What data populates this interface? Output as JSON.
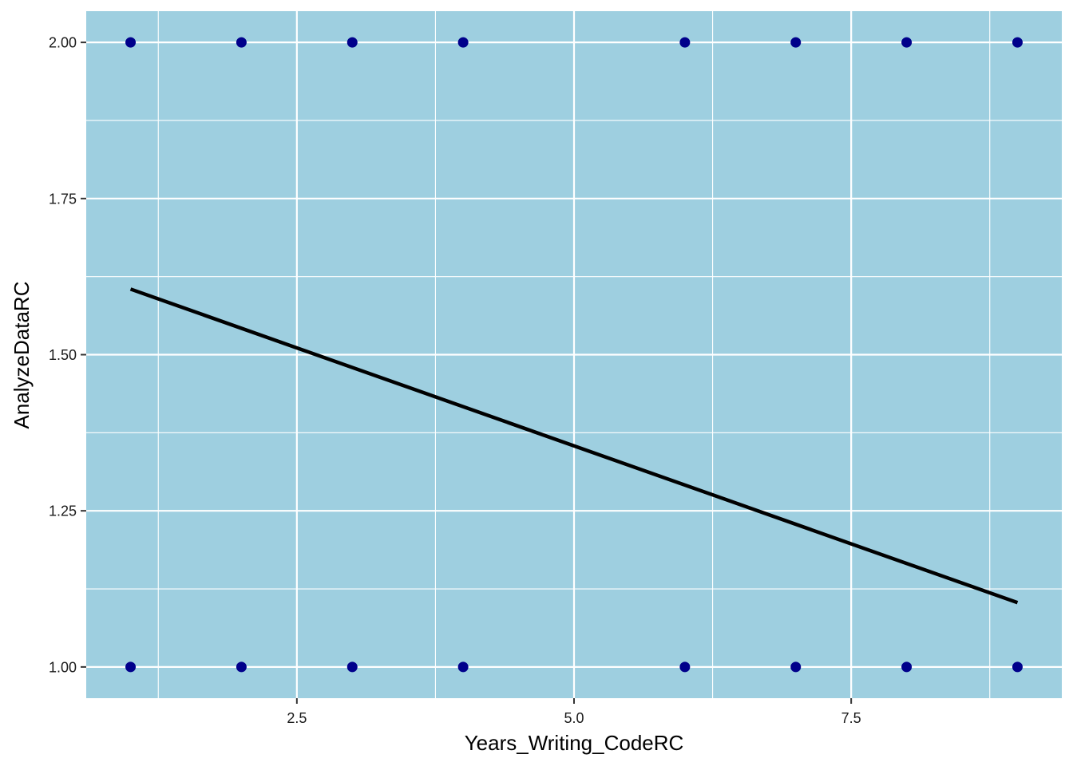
{
  "chart_data": {
    "type": "scatter",
    "xlabel": "Years_Writing_CodeRC",
    "ylabel": "AnalyzeDataRC",
    "xlim": [
      0.6,
      9.4
    ],
    "ylim": [
      0.95,
      2.05
    ],
    "x_ticks": [
      2.5,
      5.0,
      7.5
    ],
    "x_tick_labels": [
      "2.5",
      "5.0",
      "7.5"
    ],
    "x_minor_ticks": [
      1.25,
      3.75,
      6.25,
      8.75
    ],
    "y_ticks": [
      1.0,
      1.25,
      1.5,
      1.75,
      2.0
    ],
    "y_tick_labels": [
      "1.00",
      "1.25",
      "1.50",
      "1.75",
      "2.00"
    ],
    "y_minor_ticks": [
      1.125,
      1.375,
      1.625,
      1.875
    ],
    "grid": true,
    "panel_background": "#9ecfe0",
    "grid_color": "#ffffff",
    "point_color": "#00008b",
    "series": [
      {
        "points": [
          [
            1,
            2
          ],
          [
            2,
            2
          ],
          [
            3,
            2
          ],
          [
            4,
            2
          ],
          [
            6,
            2
          ],
          [
            7,
            2
          ],
          [
            8,
            2
          ],
          [
            9,
            2
          ],
          [
            1,
            1
          ],
          [
            2,
            1
          ],
          [
            3,
            1
          ],
          [
            4,
            1
          ],
          [
            6,
            1
          ],
          [
            7,
            1
          ],
          [
            8,
            1
          ],
          [
            9,
            1
          ]
        ]
      }
    ],
    "trend_line": {
      "color": "#000000",
      "points": [
        [
          1,
          1.605
        ],
        [
          9,
          1.103
        ]
      ]
    }
  }
}
